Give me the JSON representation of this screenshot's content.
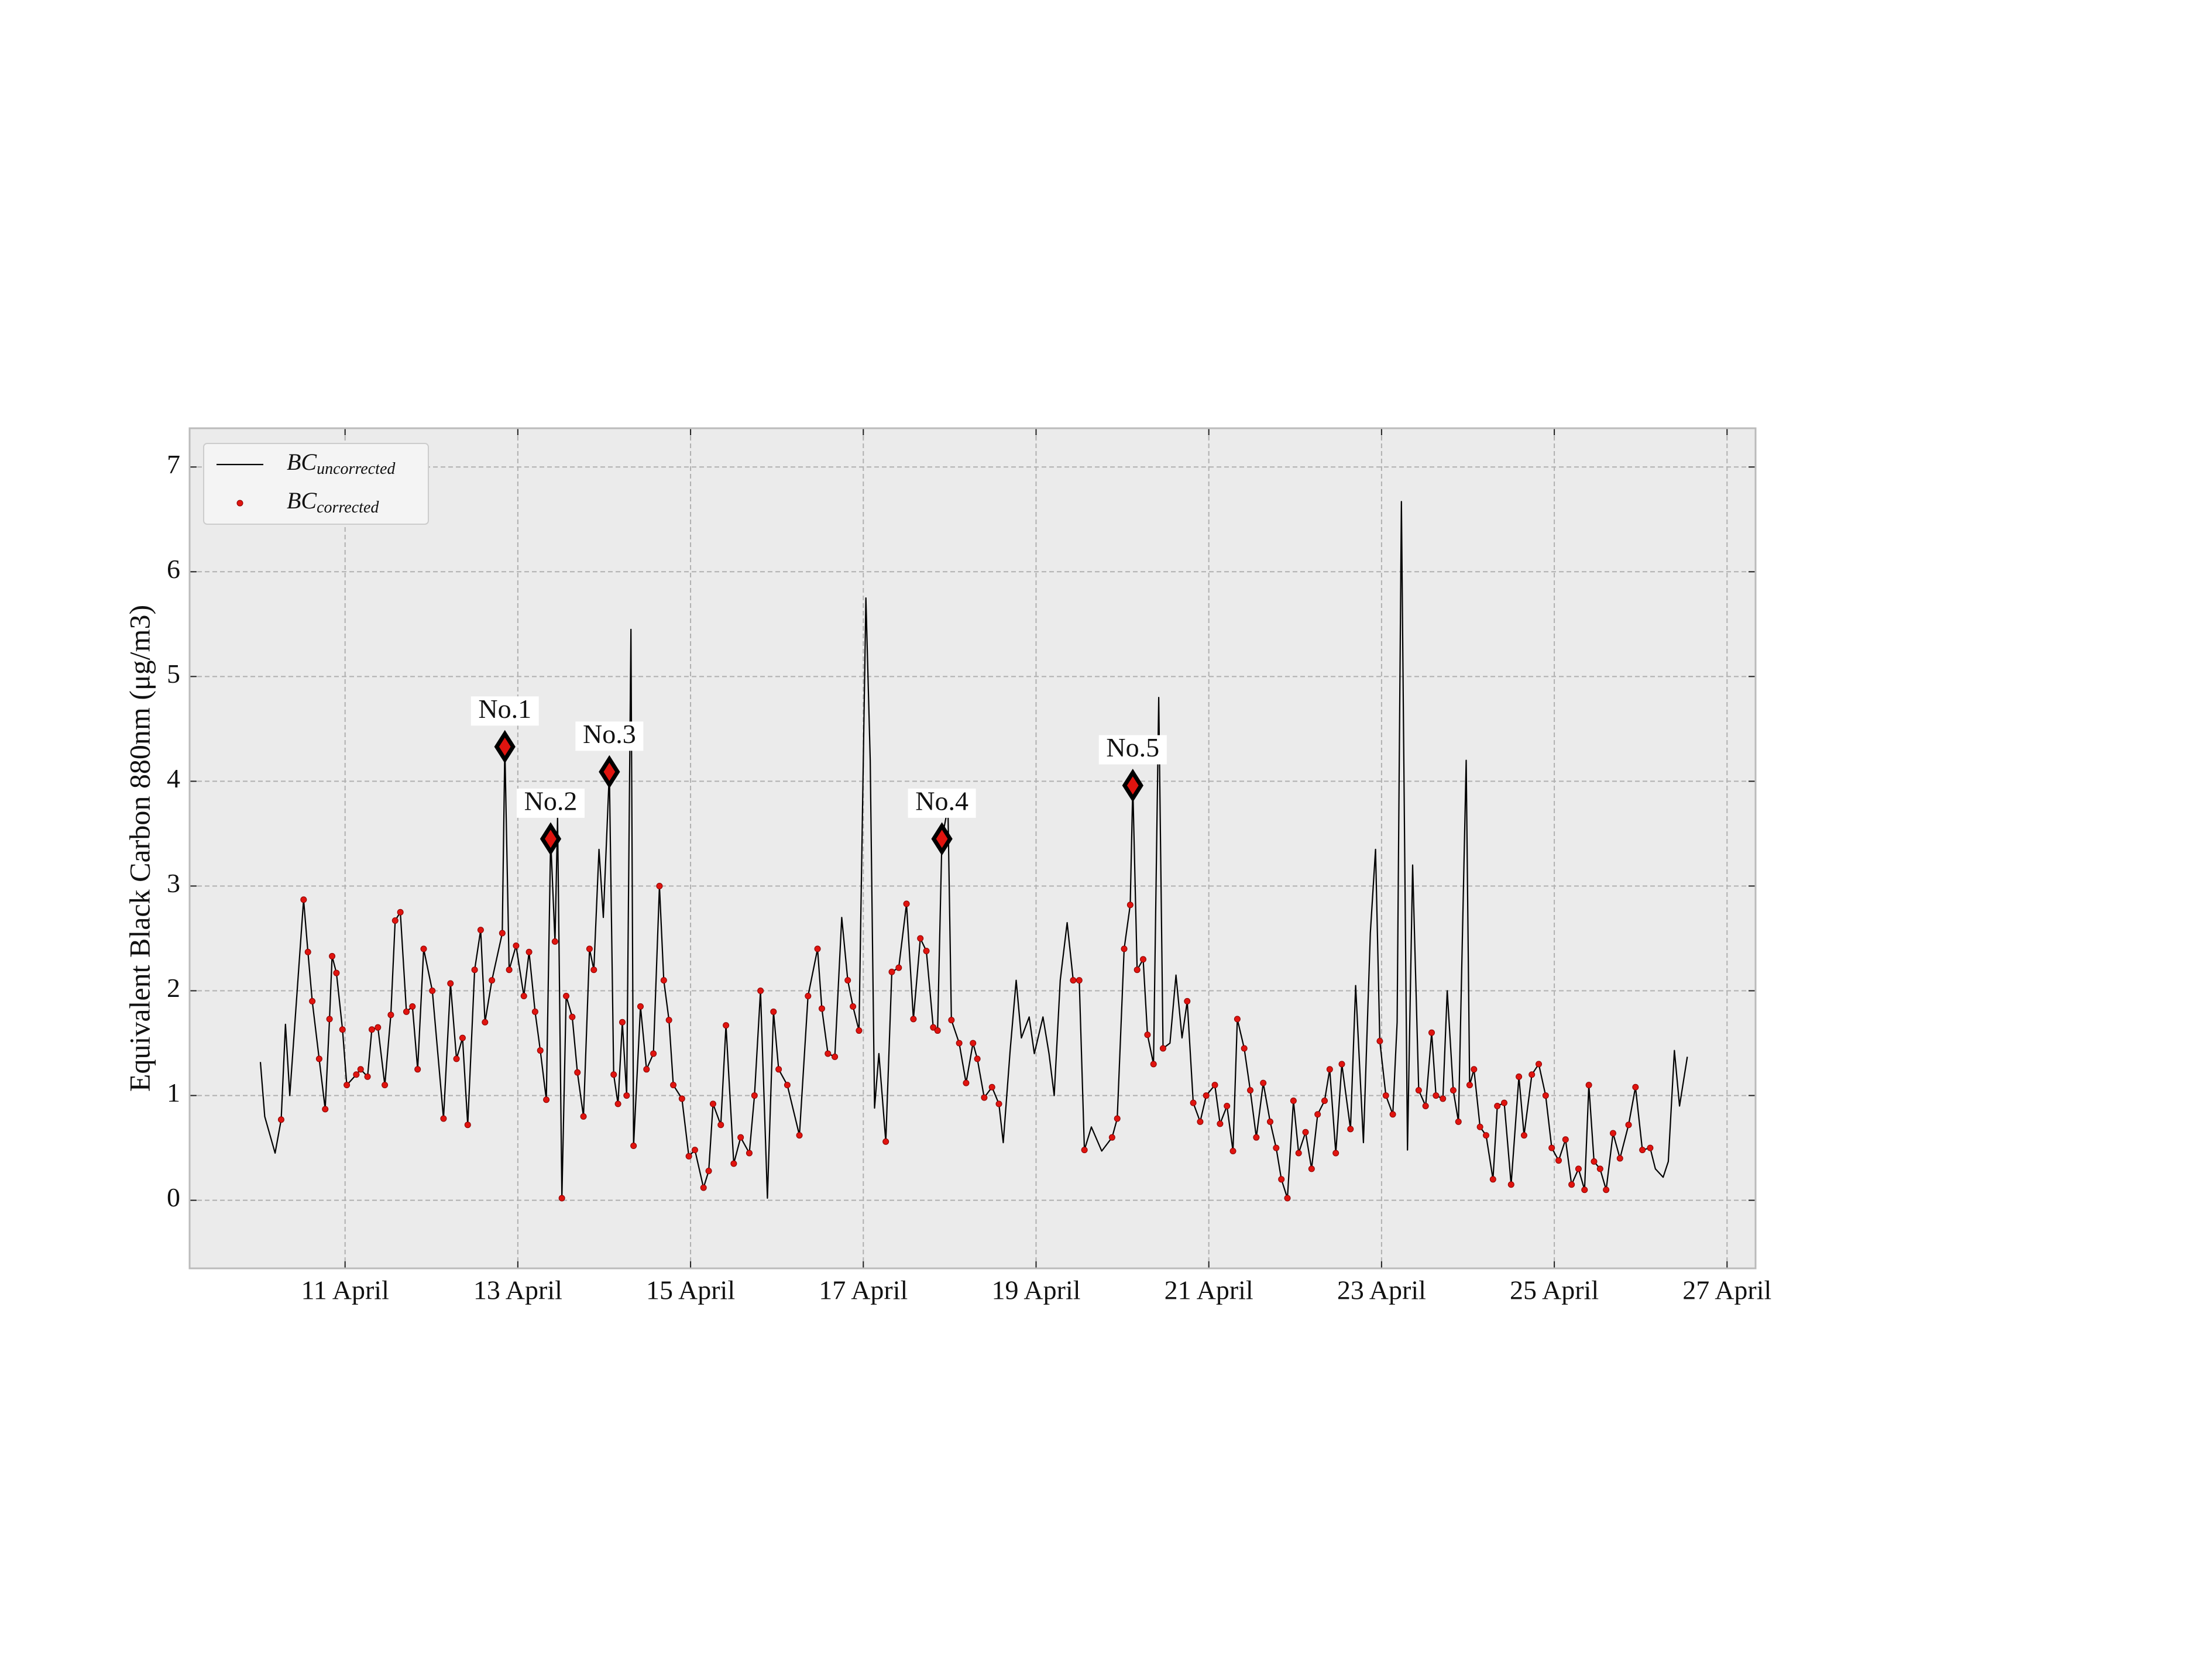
{
  "chart_data": {
    "type": "line",
    "ylabel": "Equivalent Black Carbon 880nm (μg/m3)",
    "x": [
      10.02,
      10.07,
      10.19,
      10.26,
      10.31,
      10.36,
      10.52,
      10.57,
      10.62,
      10.7,
      10.77,
      10.82,
      10.85,
      10.9,
      10.97,
      11.02,
      11.13,
      11.18,
      11.26,
      11.31,
      11.38,
      11.46,
      11.53,
      11.58,
      11.64,
      11.71,
      11.78,
      11.84,
      11.91,
      12.01,
      12.14,
      12.22,
      12.29,
      12.36,
      12.42,
      12.5,
      12.57,
      12.62,
      12.7,
      12.82,
      12.85,
      12.9,
      12.98,
      13.07,
      13.13,
      13.2,
      13.26,
      13.33,
      13.38,
      13.43,
      13.46,
      13.51,
      13.56,
      13.63,
      13.69,
      13.76,
      13.83,
      13.88,
      13.94,
      13.99,
      14.06,
      14.11,
      14.16,
      14.21,
      14.26,
      14.31,
      14.34,
      14.42,
      14.49,
      14.57,
      14.64,
      14.69,
      14.75,
      14.8,
      14.9,
      14.98,
      15.05,
      15.15,
      15.21,
      15.26,
      15.35,
      15.41,
      15.5,
      15.58,
      15.68,
      15.74,
      15.81,
      15.89,
      15.96,
      16.02,
      16.12,
      16.26,
      16.36,
      16.47,
      16.52,
      16.59,
      16.67,
      16.75,
      16.82,
      16.88,
      16.95,
      17.03,
      17.08,
      17.13,
      17.18,
      17.26,
      17.33,
      17.41,
      17.5,
      17.58,
      17.66,
      17.73,
      17.81,
      17.86,
      17.91,
      17.98,
      18.02,
      18.11,
      18.19,
      18.27,
      18.32,
      18.4,
      18.49,
      18.57,
      18.62,
      18.7,
      18.77,
      18.83,
      18.92,
      18.98,
      19.08,
      19.15,
      19.21,
      19.28,
      19.36,
      19.43,
      19.5,
      19.56,
      19.64,
      19.76,
      19.88,
      19.94,
      20.02,
      20.09,
      20.12,
      20.17,
      20.24,
      20.29,
      20.36,
      20.42,
      20.47,
      20.55,
      20.62,
      20.69,
      20.75,
      20.82,
      20.9,
      20.97,
      21.07,
      21.13,
      21.21,
      21.28,
      21.33,
      21.41,
      21.48,
      21.55,
      21.63,
      21.71,
      21.78,
      21.84,
      21.91,
      21.98,
      22.04,
      22.12,
      22.19,
      22.26,
      22.34,
      22.4,
      22.47,
      22.54,
      22.64,
      22.7,
      22.79,
      22.87,
      22.93,
      22.98,
      23.05,
      23.13,
      23.18,
      23.23,
      23.3,
      23.36,
      23.43,
      23.51,
      23.58,
      23.63,
      23.71,
      23.76,
      23.83,
      23.89,
      23.98,
      24.02,
      24.07,
      24.14,
      24.21,
      24.29,
      24.34,
      24.42,
      24.5,
      24.59,
      24.65,
      24.74,
      24.82,
      24.9,
      24.97,
      25.05,
      25.13,
      25.2,
      25.28,
      25.35,
      25.4,
      25.46,
      25.53,
      25.6,
      25.68,
      25.76,
      25.86,
      25.94,
      26.02,
      26.11,
      26.17,
      26.26,
      26.32,
      26.39,
      26.45,
      26.54
    ],
    "series": [
      {
        "name": "BCuncorrected",
        "color": "#000000",
        "style": "line",
        "values": [
          1.32,
          0.8,
          0.45,
          0.77,
          1.68,
          1.0,
          2.87,
          2.37,
          1.9,
          1.35,
          0.87,
          1.73,
          2.33,
          2.17,
          1.63,
          1.1,
          1.2,
          1.25,
          1.18,
          1.63,
          1.65,
          1.1,
          1.77,
          2.67,
          2.75,
          1.8,
          1.85,
          1.25,
          2.4,
          2.0,
          0.78,
          2.07,
          1.35,
          1.55,
          0.72,
          2.2,
          2.58,
          1.7,
          2.1,
          2.55,
          4.33,
          2.2,
          2.43,
          1.95,
          2.37,
          1.8,
          1.43,
          0.96,
          3.45,
          2.47,
          3.65,
          0.02,
          1.95,
          1.75,
          1.22,
          0.8,
          2.4,
          2.2,
          3.35,
          2.7,
          4.09,
          1.2,
          0.92,
          1.7,
          1.0,
          5.45,
          0.52,
          1.85,
          1.25,
          1.4,
          3.0,
          2.1,
          1.72,
          1.1,
          0.97,
          0.42,
          0.48,
          0.12,
          0.28,
          0.92,
          0.72,
          1.67,
          0.35,
          0.6,
          0.45,
          1.0,
          2.0,
          0.02,
          1.8,
          1.25,
          1.1,
          0.62,
          1.95,
          2.4,
          1.83,
          1.4,
          1.37,
          2.7,
          2.1,
          1.85,
          1.62,
          5.75,
          4.2,
          0.88,
          1.4,
          0.56,
          2.18,
          2.22,
          2.83,
          1.73,
          2.5,
          2.38,
          1.65,
          1.62,
          3.45,
          3.75,
          1.72,
          1.5,
          1.12,
          1.5,
          1.35,
          0.98,
          1.08,
          0.92,
          0.55,
          1.43,
          2.1,
          1.55,
          1.75,
          1.4,
          1.75,
          1.4,
          1.0,
          2.1,
          2.65,
          2.1,
          2.1,
          0.48,
          0.7,
          0.47,
          0.6,
          0.78,
          2.4,
          2.82,
          3.96,
          2.2,
          2.3,
          1.58,
          1.3,
          4.8,
          1.45,
          1.5,
          2.15,
          1.55,
          1.9,
          0.93,
          0.75,
          1.0,
          1.1,
          0.73,
          0.9,
          0.47,
          1.73,
          1.45,
          1.05,
          0.6,
          1.12,
          0.75,
          0.5,
          0.2,
          0.02,
          0.95,
          0.45,
          0.65,
          0.3,
          0.82,
          0.95,
          1.25,
          0.45,
          1.3,
          0.68,
          2.05,
          0.55,
          2.55,
          3.35,
          1.52,
          1.0,
          0.82,
          1.7,
          6.67,
          0.48,
          3.2,
          1.05,
          0.9,
          1.6,
          1.0,
          0.97,
          2.0,
          1.05,
          0.75,
          4.2,
          1.1,
          1.25,
          0.7,
          0.62,
          0.2,
          0.9,
          0.93,
          0.15,
          1.18,
          0.62,
          1.2,
          1.3,
          1.0,
          0.5,
          0.38,
          0.58,
          0.15,
          0.3,
          0.1,
          1.1,
          0.37,
          0.3,
          0.1,
          0.64,
          0.4,
          0.72,
          1.08,
          0.48,
          0.5,
          0.3,
          0.22,
          0.37,
          1.43,
          0.9,
          1.37
        ]
      },
      {
        "name": "BCcorrected",
        "color": "#e0140f",
        "style": "dots",
        "values": [
          null,
          null,
          null,
          0.77,
          null,
          null,
          2.87,
          2.37,
          1.9,
          1.35,
          0.87,
          1.73,
          2.33,
          2.17,
          1.63,
          1.1,
          1.2,
          1.25,
          1.18,
          1.63,
          1.65,
          1.1,
          1.77,
          2.67,
          2.75,
          1.8,
          1.85,
          1.25,
          2.4,
          2.0,
          0.78,
          2.07,
          1.35,
          1.55,
          0.72,
          2.2,
          2.58,
          1.7,
          2.1,
          2.55,
          4.33,
          2.2,
          2.43,
          1.95,
          2.37,
          1.8,
          1.43,
          0.96,
          3.45,
          2.47,
          null,
          0.02,
          1.95,
          1.75,
          1.22,
          0.8,
          2.4,
          2.2,
          null,
          null,
          4.09,
          1.2,
          0.92,
          1.7,
          1.0,
          null,
          0.52,
          1.85,
          1.25,
          1.4,
          3.0,
          2.1,
          1.72,
          1.1,
          0.97,
          0.42,
          0.48,
          0.12,
          0.28,
          0.92,
          0.72,
          1.67,
          0.35,
          0.6,
          0.45,
          1.0,
          2.0,
          null,
          1.8,
          1.25,
          1.1,
          0.62,
          1.95,
          2.4,
          1.83,
          1.4,
          1.37,
          null,
          2.1,
          1.85,
          1.62,
          null,
          null,
          null,
          null,
          0.56,
          2.18,
          2.22,
          2.83,
          1.73,
          2.5,
          2.38,
          1.65,
          1.62,
          3.45,
          null,
          1.72,
          1.5,
          1.12,
          1.5,
          1.35,
          0.98,
          1.08,
          0.92,
          null,
          null,
          null,
          null,
          null,
          null,
          null,
          null,
          null,
          null,
          null,
          2.1,
          2.1,
          0.48,
          null,
          null,
          0.6,
          0.78,
          2.4,
          2.82,
          3.96,
          2.2,
          2.3,
          1.58,
          1.3,
          null,
          1.45,
          null,
          null,
          null,
          1.9,
          0.93,
          0.75,
          1.0,
          1.1,
          0.73,
          0.9,
          0.47,
          1.73,
          1.45,
          1.05,
          0.6,
          1.12,
          0.75,
          0.5,
          0.2,
          0.02,
          0.95,
          0.45,
          0.65,
          0.3,
          0.82,
          0.95,
          1.25,
          0.45,
          1.3,
          0.68,
          null,
          null,
          null,
          null,
          1.52,
          1.0,
          0.82,
          null,
          null,
          null,
          null,
          1.05,
          0.9,
          1.6,
          1.0,
          0.97,
          null,
          1.05,
          0.75,
          null,
          1.1,
          1.25,
          0.7,
          0.62,
          0.2,
          0.9,
          0.93,
          0.15,
          1.18,
          0.62,
          1.2,
          1.3,
          1.0,
          0.5,
          0.38,
          0.58,
          0.15,
          0.3,
          0.1,
          1.1,
          0.37,
          0.3,
          0.1,
          0.64,
          0.4,
          0.72,
          1.08,
          0.48,
          0.5,
          null,
          null,
          null,
          null,
          null,
          null
        ]
      }
    ],
    "annotations": [
      {
        "text": "No.1",
        "x": 12.85,
        "y": 4.33
      },
      {
        "text": "No.2",
        "x": 13.38,
        "y": 3.45
      },
      {
        "text": "No.3",
        "x": 14.06,
        "y": 4.09
      },
      {
        "text": "No.4",
        "x": 17.91,
        "y": 3.45
      },
      {
        "text": "No.5",
        "x": 20.12,
        "y": 3.96
      }
    ],
    "xlim": [
      9.2,
      27.33
    ],
    "xticks": [
      {
        "value": 11,
        "label": "11 April"
      },
      {
        "value": 13,
        "label": "13 April"
      },
      {
        "value": 15,
        "label": "15 April"
      },
      {
        "value": 17,
        "label": "17 April"
      },
      {
        "value": 19,
        "label": "19 April"
      },
      {
        "value": 21,
        "label": "21 April"
      },
      {
        "value": 23,
        "label": "23 April"
      },
      {
        "value": 25,
        "label": "25 April"
      },
      {
        "value": 27,
        "label": "27 April"
      }
    ],
    "ylim": [
      -0.65,
      7.37
    ],
    "yticks": [
      0,
      1,
      2,
      3,
      4,
      5,
      6,
      7
    ],
    "grid": true,
    "legend": "upper left"
  }
}
